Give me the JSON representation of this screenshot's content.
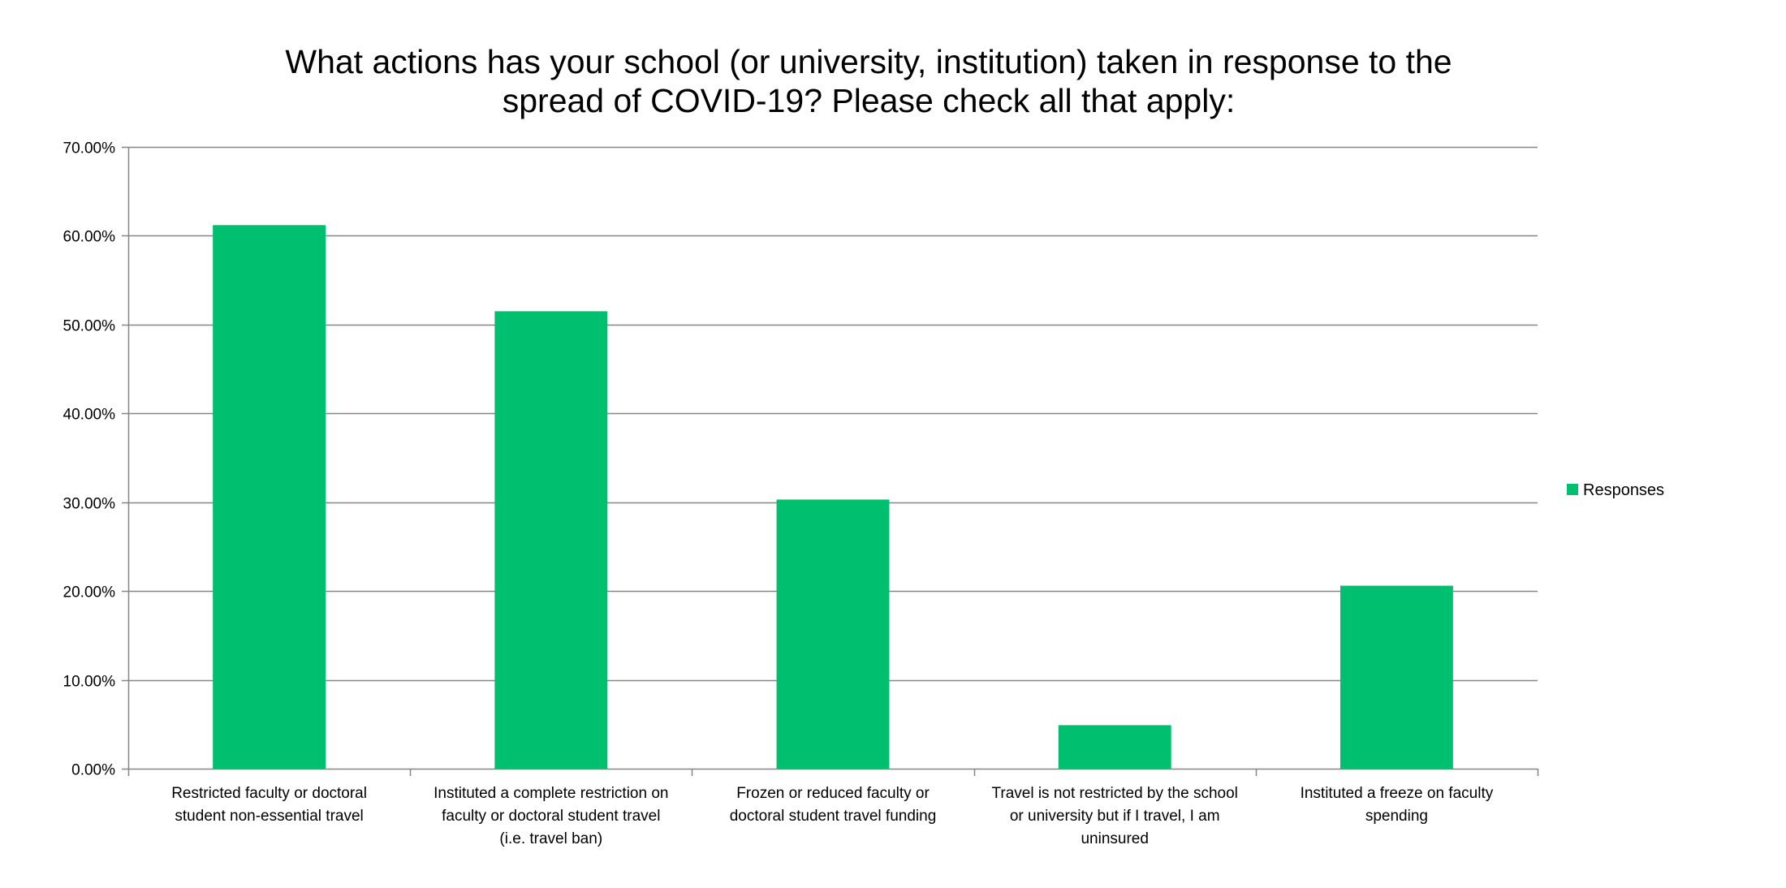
{
  "chart_data": {
    "type": "bar",
    "title_lines": [
      "What actions has your school (or university, institution) taken in response to the",
      "spread of COVID-19?  Please check all that apply:"
    ],
    "categories": [
      [
        "Restricted faculty or doctoral",
        "student non-essential travel"
      ],
      [
        "Instituted a complete restriction on",
        "faculty or doctoral student travel",
        "(i.e. travel ban)"
      ],
      [
        "Frozen or reduced faculty or",
        "doctoral student travel funding"
      ],
      [
        "Travel is not restricted by the school",
        "or university but if I travel, I am",
        "uninsured"
      ],
      [
        "Instituted a freeze on faculty",
        "spending"
      ]
    ],
    "series": [
      {
        "name": "Responses",
        "color": "#00BF6F",
        "values": [
          61.2,
          51.5,
          30.3,
          4.9,
          20.6
        ]
      }
    ],
    "y_ticks": [
      "0.00%",
      "10.00%",
      "20.00%",
      "30.00%",
      "40.00%",
      "50.00%",
      "60.00%",
      "70.00%"
    ],
    "ylim": [
      0,
      70
    ],
    "grid": true,
    "legend_position": "right",
    "xlabel": "",
    "ylabel": ""
  }
}
